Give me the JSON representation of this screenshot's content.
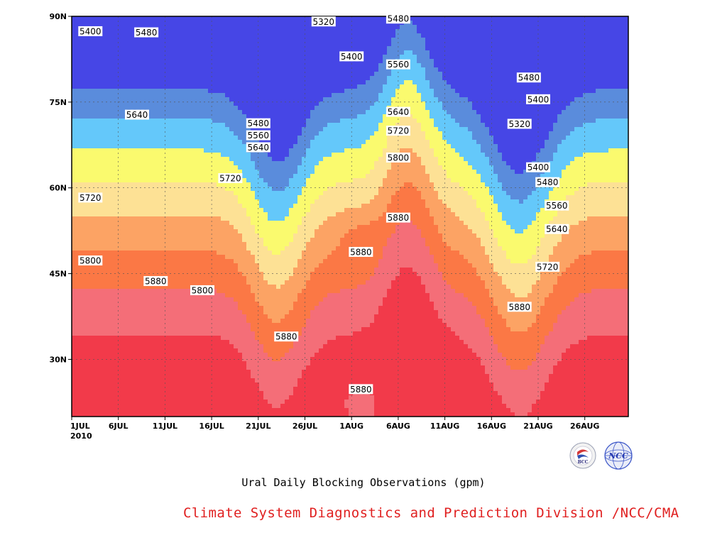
{
  "chart_data": {
    "type": "contour",
    "title": "Ural Daily Blocking Observations (gpm)",
    "x_ticks": [
      "1JUL",
      "6JUL",
      "11JUL",
      "16JUL",
      "21JUL",
      "26JUL",
      "1AUG",
      "6AUG",
      "11AUG",
      "16AUG",
      "21AUG",
      "26AUG"
    ],
    "x_year_label": "2010",
    "y_ticks": [
      "30N",
      "45N",
      "60N",
      "75N",
      "90N"
    ],
    "ylim_deg": [
      20,
      90
    ],
    "grid": true,
    "contour_levels": [
      5320,
      5400,
      5480,
      5560,
      5640,
      5720,
      5800,
      5880
    ],
    "level_colors": [
      "#4646e6",
      "#5a8cdc",
      "#64c8fa",
      "#fafa6e",
      "#fde195",
      "#fca364",
      "#fb7845",
      "#f46e78",
      "#f23a4a"
    ],
    "contour_labels": [
      {
        "text": "5400",
        "date": "3JUL",
        "lat": 87.4
      },
      {
        "text": "5480",
        "date": "9JUL",
        "lat": 87.2
      },
      {
        "text": "5320",
        "date": "28JUL",
        "lat": 89.1
      },
      {
        "text": "5480",
        "date": "5AUG",
        "lat": 89.6
      },
      {
        "text": "5400",
        "date": "31JUL",
        "lat": 83.0
      },
      {
        "text": "5560",
        "date": "5AUG",
        "lat": 81.6
      },
      {
        "text": "5640",
        "date": "8JUL",
        "lat": 72.8
      },
      {
        "text": "5480",
        "date": "21JUL",
        "lat": 71.3
      },
      {
        "text": "5560",
        "date": "21JUL",
        "lat": 69.2
      },
      {
        "text": "5640",
        "date": "21JUL",
        "lat": 67.1
      },
      {
        "text": "5640",
        "date": "5AUG",
        "lat": 73.3
      },
      {
        "text": "5720",
        "date": "5AUG",
        "lat": 70.0
      },
      {
        "text": "5800",
        "date": "5AUG",
        "lat": 65.3
      },
      {
        "text": "5720",
        "date": "3JUL",
        "lat": 58.3
      },
      {
        "text": "5720",
        "date": "18JUL",
        "lat": 61.7
      },
      {
        "text": "5880",
        "date": "5AUG",
        "lat": 54.8
      },
      {
        "text": "5880",
        "date": "1AUG",
        "lat": 48.8
      },
      {
        "text": "5800",
        "date": "3JUL",
        "lat": 47.3
      },
      {
        "text": "5880",
        "date": "10JUL",
        "lat": 43.7
      },
      {
        "text": "5800",
        "date": "15JUL",
        "lat": 42.1
      },
      {
        "text": "5880",
        "date": "24JUL",
        "lat": 34.0
      },
      {
        "text": "5880",
        "date": "1AUG",
        "lat": 24.8
      },
      {
        "text": "5480",
        "date": "19AUG",
        "lat": 79.3
      },
      {
        "text": "5400",
        "date": "20AUG",
        "lat": 75.5
      },
      {
        "text": "5320",
        "date": "18AUG",
        "lat": 71.2
      },
      {
        "text": "5400",
        "date": "20AUG",
        "lat": 63.6
      },
      {
        "text": "5480",
        "date": "21AUG",
        "lat": 61.0
      },
      {
        "text": "5560",
        "date": "22AUG",
        "lat": 56.9
      },
      {
        "text": "5640",
        "date": "22AUG",
        "lat": 52.8
      },
      {
        "text": "5720",
        "date": "21AUG",
        "lat": 46.2
      },
      {
        "text": "5880",
        "date": "18AUG",
        "lat": 39.2
      }
    ]
  },
  "credit": "Climate System Diagnostics and Prediction Division /NCC/CMA",
  "logos": [
    {
      "icon": "bcc-logo",
      "text": "BCC"
    },
    {
      "icon": "ncc-logo",
      "text": "NCC"
    }
  ]
}
